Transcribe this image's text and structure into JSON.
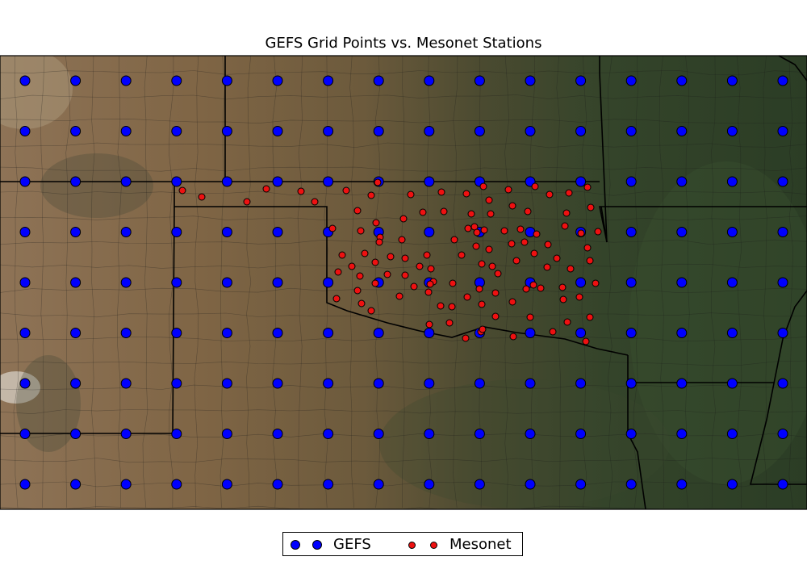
{
  "title": "GEFS Grid Points vs. Mesonet Stations",
  "colors": {
    "gefs": "#0000ff",
    "mesonet": "#ee1111",
    "marker_edge": "#000000",
    "boundary": "#000000",
    "terrain_west": "#8a7050",
    "terrain_east": "#2f4326"
  },
  "legend": {
    "items": [
      {
        "label": "GEFS",
        "marker": "large-blue-circle"
      },
      {
        "label": "Mesonet",
        "marker": "small-red-circle"
      }
    ]
  },
  "chart_data": {
    "type": "scatter",
    "title": "GEFS Grid Points vs. Mesonet Stations",
    "background": "satellite terrain basemap with state and county boundaries",
    "series": [
      {
        "name": "GEFS",
        "grid": {
          "columns": 16,
          "rows": 9
        },
        "note_values": "regular grid of points covering the map extent"
      },
      {
        "name": "Mesonet",
        "count": 118
      }
    ]
  }
}
